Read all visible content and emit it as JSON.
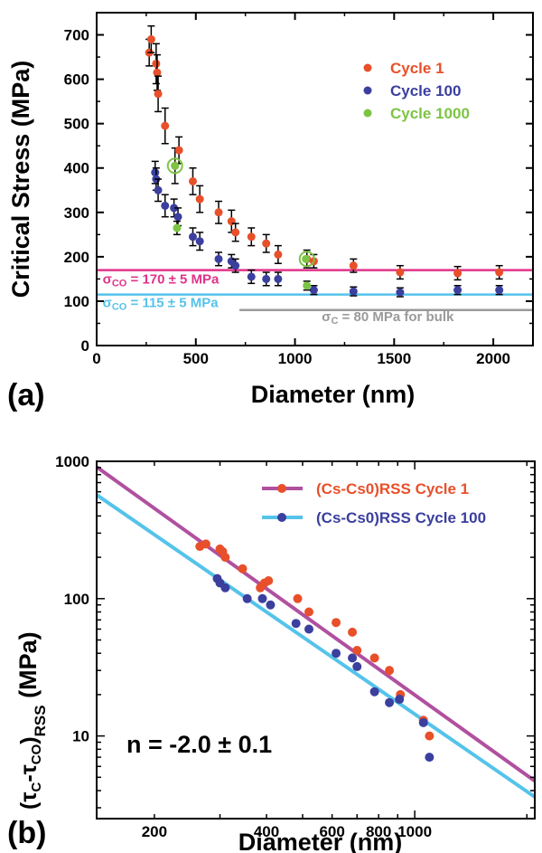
{
  "colors": {
    "cycle1": "#e8502a",
    "cycle100": "#3b3f9e",
    "cycle1000": "#7cc444",
    "line_pink": "#e0338a",
    "line_cyan": "#55c3ea",
    "line_gray": "#9a9a9a",
    "fit_purple": "#b0509f",
    "fit_cyan": "#55c3ea"
  },
  "chart_data": [
    {
      "type": "scatter",
      "panel_label": "(a)",
      "xlabel": "Diameter (nm)",
      "ylabel": "Critical Stress (MPa)",
      "xlim": [
        0,
        2200
      ],
      "ylim": [
        0,
        750
      ],
      "xticks": [
        0,
        500,
        1000,
        1500,
        2000
      ],
      "yticks": [
        0,
        100,
        200,
        300,
        400,
        500,
        600,
        700
      ],
      "legend_position": "top-right",
      "series": [
        {
          "name": "Cycle 1",
          "color_key": "cycle1",
          "points": [
            {
              "x": 265,
              "y": 660,
              "err": 30
            },
            {
              "x": 275,
              "y": 690,
              "err": 30
            },
            {
              "x": 300,
              "y": 635,
              "err": 45
            },
            {
              "x": 305,
              "y": 615,
              "err": 40
            },
            {
              "x": 310,
              "y": 567,
              "err": 40
            },
            {
              "x": 345,
              "y": 495,
              "err": 40
            },
            {
              "x": 395,
              "y": 405,
              "err": 40
            },
            {
              "x": 415,
              "y": 440,
              "err": 30
            },
            {
              "x": 485,
              "y": 370,
              "err": 30
            },
            {
              "x": 520,
              "y": 330,
              "err": 30
            },
            {
              "x": 615,
              "y": 300,
              "err": 25
            },
            {
              "x": 680,
              "y": 280,
              "err": 25
            },
            {
              "x": 700,
              "y": 255,
              "err": 20
            },
            {
              "x": 780,
              "y": 245,
              "err": 20
            },
            {
              "x": 855,
              "y": 230,
              "err": 20
            },
            {
              "x": 915,
              "y": 205,
              "err": 20
            },
            {
              "x": 1060,
              "y": 195,
              "err": 20
            },
            {
              "x": 1095,
              "y": 190,
              "err": 15
            },
            {
              "x": 1295,
              "y": 180,
              "err": 15
            },
            {
              "x": 1530,
              "y": 165,
              "err": 15
            },
            {
              "x": 1820,
              "y": 163,
              "err": 15
            },
            {
              "x": 2030,
              "y": 165,
              "err": 15
            }
          ]
        },
        {
          "name": "Cycle 100",
          "color_key": "cycle100",
          "points": [
            {
              "x": 295,
              "y": 390,
              "err": 25
            },
            {
              "x": 300,
              "y": 375,
              "err": 25
            },
            {
              "x": 310,
              "y": 350,
              "err": 25
            },
            {
              "x": 345,
              "y": 315,
              "err": 25
            },
            {
              "x": 390,
              "y": 310,
              "err": 20
            },
            {
              "x": 410,
              "y": 290,
              "err": 20
            },
            {
              "x": 485,
              "y": 245,
              "err": 20
            },
            {
              "x": 520,
              "y": 235,
              "err": 20
            },
            {
              "x": 615,
              "y": 195,
              "err": 15
            },
            {
              "x": 680,
              "y": 190,
              "err": 15
            },
            {
              "x": 700,
              "y": 180,
              "err": 15
            },
            {
              "x": 780,
              "y": 155,
              "err": 15
            },
            {
              "x": 855,
              "y": 150,
              "err": 15
            },
            {
              "x": 915,
              "y": 150,
              "err": 15
            },
            {
              "x": 1095,
              "y": 125,
              "err": 10
            },
            {
              "x": 1295,
              "y": 122,
              "err": 10
            },
            {
              "x": 1530,
              "y": 120,
              "err": 10
            },
            {
              "x": 1820,
              "y": 125,
              "err": 10
            },
            {
              "x": 2030,
              "y": 125,
              "err": 10
            }
          ]
        },
        {
          "name": "Cycle 1000",
          "color_key": "cycle1000",
          "points": [
            {
              "x": 395,
              "y": 405,
              "err": 0
            },
            {
              "x": 405,
              "y": 265,
              "err": 15
            },
            {
              "x": 1055,
              "y": 195,
              "err": 0
            },
            {
              "x": 1060,
              "y": 135,
              "err": 10
            }
          ]
        }
      ],
      "circled_points": [
        {
          "x": 395,
          "y": 405
        },
        {
          "x": 1060,
          "y": 195
        }
      ],
      "reference_lines": [
        {
          "y": 170,
          "x_from": 0,
          "x_to": 2200,
          "color_key": "line_pink",
          "label": "σ",
          "sub": "CO",
          "suffix": " = 170 ± 5 MPa",
          "label_x": 30,
          "label_y": 140
        },
        {
          "y": 115,
          "x_from": 0,
          "x_to": 2200,
          "color_key": "line_cyan",
          "label": "σ",
          "sub": "CO",
          "suffix": " = 115 ± 5 MPa",
          "label_x": 30,
          "label_y": 87
        },
        {
          "y": 80,
          "x_from": 720,
          "x_to": 2200,
          "color_key": "line_gray",
          "label": "σ",
          "sub": "C",
          "suffix": " = 80 MPa for bulk",
          "label_x": 1135,
          "label_y": 55
        }
      ]
    },
    {
      "type": "scatter",
      "panel_label": "(b)",
      "xlabel": "Diameter (nm)",
      "ylabel_main": "(τ",
      "ylabel_sub1": "C",
      "ylabel_mid": "-τ",
      "ylabel_sub2": "CO",
      "ylabel_close": ")",
      "ylabel_subscript": "RSS",
      "ylabel_unit": "(MPa)",
      "xscale": "log",
      "yscale": "log",
      "xlim": [
        140,
        2100
      ],
      "ylim": [
        2.5,
        1000
      ],
      "xtick_labels": [
        {
          "value": 200,
          "text": "200"
        },
        {
          "value": 400,
          "text": "400"
        },
        {
          "value": 600,
          "text": "600"
        },
        {
          "value": 800,
          "text": "800"
        },
        {
          "value": 1000,
          "text": "1000"
        }
      ],
      "ytick_labels": [
        {
          "value": 10,
          "text": "10"
        },
        {
          "value": 100,
          "text": "100"
        },
        {
          "value": 1000,
          "text": "1000"
        }
      ],
      "legend_position": "top-right",
      "annotation": "n = -2.0 ± 0.1",
      "series": [
        {
          "name": "(Cs-Cs0)RSS Cycle 1",
          "color_key": "cycle1",
          "fit_color_key": "fit_purple",
          "fit": {
            "x1": 140,
            "y1": 910,
            "x2": 2100,
            "y2": 4.7
          },
          "points": [
            {
              "x": 265,
              "y": 240
            },
            {
              "x": 275,
              "y": 250
            },
            {
              "x": 300,
              "y": 230
            },
            {
              "x": 305,
              "y": 220
            },
            {
              "x": 310,
              "y": 200
            },
            {
              "x": 345,
              "y": 165
            },
            {
              "x": 385,
              "y": 120
            },
            {
              "x": 395,
              "y": 130
            },
            {
              "x": 405,
              "y": 135
            },
            {
              "x": 485,
              "y": 100
            },
            {
              "x": 520,
              "y": 80
            },
            {
              "x": 615,
              "y": 67
            },
            {
              "x": 680,
              "y": 57
            },
            {
              "x": 700,
              "y": 42
            },
            {
              "x": 780,
              "y": 37
            },
            {
              "x": 855,
              "y": 30
            },
            {
              "x": 915,
              "y": 20
            },
            {
              "x": 1055,
              "y": 13
            },
            {
              "x": 1095,
              "y": 10
            }
          ]
        },
        {
          "name": "(Cs-Cs0)RSS Cycle 100",
          "color_key": "cycle100",
          "fit_color_key": "fit_cyan",
          "fit": {
            "x1": 140,
            "y1": 570,
            "x2": 2100,
            "y2": 3.6
          },
          "points": [
            {
              "x": 295,
              "y": 140
            },
            {
              "x": 300,
              "y": 130
            },
            {
              "x": 310,
              "y": 120
            },
            {
              "x": 355,
              "y": 100
            },
            {
              "x": 390,
              "y": 100
            },
            {
              "x": 410,
              "y": 90
            },
            {
              "x": 480,
              "y": 66
            },
            {
              "x": 520,
              "y": 60
            },
            {
              "x": 615,
              "y": 40
            },
            {
              "x": 680,
              "y": 37
            },
            {
              "x": 700,
              "y": 32
            },
            {
              "x": 780,
              "y": 21
            },
            {
              "x": 855,
              "y": 17.5
            },
            {
              "x": 910,
              "y": 18.5
            },
            {
              "x": 1055,
              "y": 12.5
            },
            {
              "x": 1095,
              "y": 7
            }
          ]
        }
      ]
    }
  ]
}
